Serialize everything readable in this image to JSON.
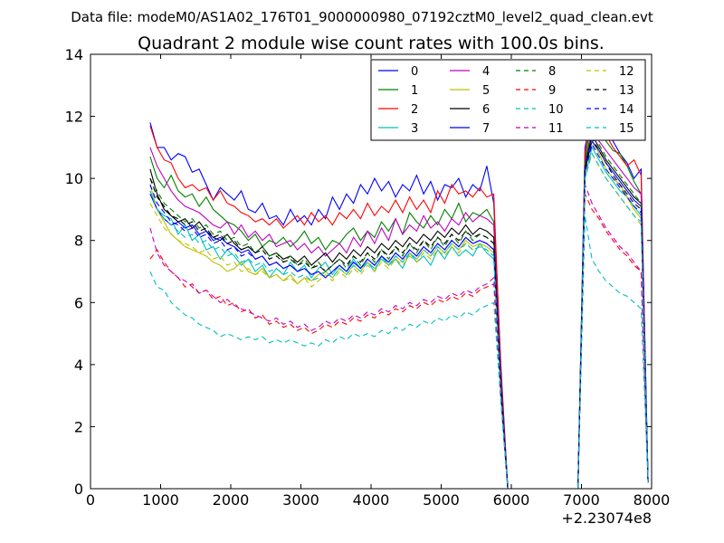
{
  "header": {
    "data_file": "Data file: modeM0/AS1A02_176T01_9000000980_07192cztM0_level2_quad_clean.evt"
  },
  "chart_data": {
    "type": "line",
    "title": "Quadrant 2 module wise count rates with 100.0s bins.",
    "xlabel": "",
    "ylabel": "",
    "x_offset_label": "+2.23074e8",
    "xlim": [
      0,
      8000
    ],
    "ylim": [
      0,
      14
    ],
    "xticks": [
      "0",
      "1000",
      "2000",
      "3000",
      "4000",
      "5000",
      "6000",
      "7000",
      "8000"
    ],
    "yticks": [
      "0",
      "2",
      "4",
      "6",
      "8",
      "10",
      "12",
      "14"
    ],
    "grid": false,
    "legend_position": "top-right",
    "x": [
      850,
      950,
      1050,
      1150,
      1250,
      1350,
      1450,
      1550,
      1650,
      1750,
      1850,
      1950,
      2050,
      2150,
      2250,
      2350,
      2450,
      2550,
      2650,
      2750,
      2850,
      2950,
      3050,
      3150,
      3250,
      3350,
      3450,
      3550,
      3650,
      3750,
      3850,
      3950,
      4050,
      4150,
      4250,
      4350,
      4450,
      4550,
      4650,
      4750,
      4850,
      4950,
      5050,
      5150,
      5250,
      5350,
      5450,
      5550,
      5650,
      5750,
      5850,
      5950,
      6050,
      6950,
      7050,
      7150,
      7250,
      7350,
      7450,
      7550,
      7650,
      7750,
      7850,
      7950
    ],
    "series": [
      {
        "name": "0",
        "color": "#0000ff",
        "dash": "solid",
        "values": [
          11.8,
          11.0,
          11.0,
          10.6,
          10.8,
          10.7,
          10.2,
          10.3,
          9.8,
          9.3,
          9.7,
          9.5,
          9.3,
          9.6,
          9.0,
          8.9,
          9.2,
          8.7,
          8.8,
          8.5,
          9.0,
          8.6,
          8.8,
          8.5,
          9.0,
          8.7,
          9.4,
          9.0,
          9.5,
          9.2,
          9.8,
          9.5,
          10.0,
          9.6,
          9.9,
          9.4,
          9.8,
          9.6,
          10.1,
          9.5,
          9.9,
          9.3,
          9.8,
          9.7,
          10.0,
          9.4,
          9.8,
          9.6,
          10.4,
          9.2,
          4.0,
          0.0,
          0.0,
          0.0,
          11.0,
          12.1,
          12.6,
          11.9,
          11.2,
          10.8,
          10.5,
          10.0,
          10.3,
          0.2
        ]
      },
      {
        "name": "1",
        "color": "#008000",
        "dash": "solid",
        "values": [
          10.7,
          10.0,
          9.7,
          10.1,
          9.6,
          9.4,
          9.5,
          9.1,
          9.4,
          9.0,
          8.8,
          8.6,
          8.5,
          8.3,
          8.0,
          8.2,
          7.8,
          8.0,
          7.9,
          8.1,
          7.8,
          8.0,
          8.3,
          7.9,
          8.1,
          7.7,
          8.0,
          7.9,
          8.2,
          8.4,
          8.0,
          8.3,
          8.1,
          8.6,
          8.3,
          8.7,
          8.2,
          8.9,
          8.6,
          8.4,
          8.8,
          8.5,
          9.0,
          8.7,
          9.2,
          8.6,
          8.9,
          8.8,
          9.0,
          8.6,
          3.5,
          0.0,
          0.0,
          0.0,
          10.6,
          12.0,
          11.6,
          11.2,
          10.9,
          10.8,
          10.4,
          9.9,
          9.5,
          0.2
        ]
      },
      {
        "name": "2",
        "color": "#ff0000",
        "dash": "solid",
        "values": [
          11.7,
          11.0,
          10.6,
          10.5,
          10.0,
          9.7,
          9.8,
          9.6,
          9.7,
          9.3,
          9.6,
          9.2,
          9.1,
          8.9,
          8.8,
          8.6,
          8.7,
          8.5,
          8.7,
          8.4,
          8.6,
          8.8,
          8.5,
          8.9,
          8.6,
          8.8,
          8.5,
          8.9,
          8.7,
          9.0,
          8.7,
          9.2,
          8.8,
          9.1,
          8.9,
          9.3,
          8.9,
          9.4,
          9.0,
          9.3,
          8.9,
          9.6,
          9.2,
          9.8,
          9.5,
          9.6,
          9.4,
          9.7,
          9.4,
          9.5,
          3.8,
          0.0,
          0.0,
          0.0,
          10.8,
          12.4,
          12.0,
          11.4,
          11.0,
          10.7,
          10.4,
          10.6,
          10.1,
          0.2
        ]
      },
      {
        "name": "3",
        "color": "#00bfbf",
        "dash": "solid",
        "values": [
          9.6,
          9.0,
          8.8,
          8.7,
          8.2,
          8.5,
          8.0,
          8.2,
          7.7,
          7.8,
          7.4,
          7.7,
          7.5,
          7.2,
          7.4,
          7.0,
          7.2,
          6.8,
          7.1,
          6.9,
          7.3,
          7.0,
          7.2,
          6.8,
          7.1,
          7.3,
          6.9,
          7.2,
          7.0,
          7.4,
          7.1,
          7.3,
          7.0,
          7.5,
          7.2,
          7.4,
          7.1,
          7.6,
          7.3,
          7.5,
          7.2,
          7.7,
          7.4,
          7.8,
          7.5,
          7.7,
          7.5,
          7.9,
          7.6,
          7.4,
          3.0,
          0.0,
          0.0,
          0.0,
          10.0,
          11.0,
          10.6,
          10.2,
          9.9,
          9.6,
          9.4,
          9.1,
          8.8,
          0.2
        ]
      },
      {
        "name": "4",
        "color": "#bf00bf",
        "dash": "solid",
        "values": [
          11.0,
          10.4,
          10.0,
          9.6,
          9.3,
          9.1,
          9.0,
          8.9,
          8.7,
          8.5,
          8.4,
          8.6,
          8.2,
          8.5,
          8.1,
          8.3,
          8.0,
          8.2,
          7.8,
          7.9,
          8.0,
          7.7,
          7.9,
          7.6,
          7.8,
          7.5,
          7.7,
          7.9,
          7.6,
          8.1,
          7.8,
          8.3,
          7.9,
          8.4,
          8.0,
          8.7,
          8.2,
          8.5,
          8.3,
          8.8,
          8.4,
          8.6,
          8.3,
          8.7,
          8.5,
          8.9,
          8.6,
          8.8,
          8.7,
          8.5,
          3.4,
          0.0,
          0.0,
          0.0,
          10.5,
          11.6,
          11.2,
          10.9,
          10.6,
          10.3,
          10.0,
          9.7,
          9.5,
          0.2
        ]
      },
      {
        "name": "5",
        "color": "#bfbf00",
        "dash": "solid",
        "values": [
          9.8,
          9.0,
          8.6,
          8.2,
          8.0,
          7.8,
          7.7,
          7.6,
          7.5,
          7.3,
          7.2,
          7.0,
          7.1,
          7.3,
          7.0,
          6.9,
          7.1,
          6.8,
          6.9,
          6.7,
          6.9,
          6.6,
          6.8,
          6.7,
          6.9,
          7.0,
          6.8,
          7.1,
          6.9,
          7.2,
          7.0,
          7.3,
          7.1,
          7.4,
          7.2,
          7.5,
          7.3,
          7.6,
          7.4,
          7.7,
          7.5,
          7.8,
          7.6,
          7.9,
          7.7,
          8.0,
          7.8,
          7.9,
          7.8,
          7.6,
          3.0,
          0.0,
          0.0,
          0.0,
          10.2,
          11.2,
          10.8,
          10.3,
          10.0,
          9.8,
          9.4,
          9.0,
          8.7,
          0.2
        ]
      },
      {
        "name": "6",
        "color": "#000000",
        "dash": "solid",
        "values": [
          10.3,
          9.5,
          9.0,
          8.8,
          8.6,
          8.7,
          8.4,
          8.6,
          8.3,
          8.1,
          8.0,
          8.2,
          7.9,
          7.7,
          7.8,
          7.6,
          7.8,
          7.5,
          7.6,
          7.4,
          7.5,
          7.3,
          7.5,
          7.2,
          7.4,
          7.6,
          7.3,
          7.6,
          7.4,
          7.7,
          7.5,
          7.8,
          7.6,
          7.9,
          7.7,
          8.0,
          7.8,
          8.1,
          7.9,
          8.2,
          8.0,
          8.3,
          8.1,
          8.4,
          8.2,
          8.5,
          8.2,
          8.4,
          8.3,
          8.1,
          3.3,
          0.0,
          0.0,
          0.0,
          10.4,
          11.4,
          11.0,
          10.6,
          10.3,
          10.0,
          9.7,
          9.4,
          9.2,
          0.2
        ]
      },
      {
        "name": "7",
        "color": "#0000ff",
        "dash": "solid",
        "values": [
          9.5,
          9.0,
          8.7,
          8.5,
          8.6,
          8.4,
          8.5,
          8.2,
          8.3,
          8.0,
          8.1,
          7.9,
          7.8,
          7.6,
          7.7,
          7.4,
          7.5,
          7.2,
          7.3,
          7.1,
          7.2,
          7.0,
          7.1,
          6.9,
          7.0,
          6.8,
          7.0,
          7.2,
          7.0,
          7.3,
          7.1,
          7.4,
          7.2,
          7.5,
          7.3,
          7.6,
          7.4,
          7.7,
          7.5,
          7.8,
          7.6,
          7.9,
          7.7,
          8.0,
          7.8,
          8.1,
          7.9,
          8.0,
          7.9,
          7.7,
          3.1,
          0.0,
          0.0,
          0.0,
          10.3,
          11.2,
          10.9,
          10.5,
          10.2,
          9.9,
          9.6,
          9.3,
          9.1,
          0.2
        ]
      },
      {
        "name": "8",
        "color": "#008000",
        "dash": "dashed",
        "values": [
          10.0,
          9.6,
          9.2,
          9.0,
          8.8,
          8.6,
          8.7,
          8.4,
          8.5,
          8.2,
          8.3,
          8.0,
          8.1,
          7.8,
          7.9,
          7.6,
          7.8,
          7.5,
          7.6,
          7.3,
          7.5,
          7.2,
          7.4,
          7.1,
          7.3,
          7.0,
          7.2,
          7.4,
          7.1,
          7.5,
          7.2,
          7.6,
          7.3,
          7.7,
          7.4,
          7.8,
          7.5,
          7.9,
          7.6,
          8.0,
          7.7,
          8.1,
          7.8,
          8.2,
          7.9,
          8.3,
          8.0,
          8.2,
          8.1,
          7.9,
          3.2,
          0.0,
          0.0,
          0.0,
          10.5,
          11.6,
          11.1,
          10.7,
          10.4,
          10.1,
          9.8,
          9.5,
          9.2,
          0.2
        ]
      },
      {
        "name": "9",
        "color": "#ff0000",
        "dash": "dashed",
        "values": [
          7.4,
          7.7,
          7.3,
          7.0,
          6.8,
          6.5,
          6.6,
          6.3,
          6.4,
          6.1,
          6.2,
          5.9,
          6.0,
          5.7,
          5.8,
          5.5,
          5.6,
          5.3,
          5.4,
          5.2,
          5.3,
          5.1,
          5.2,
          5.0,
          5.1,
          5.3,
          5.2,
          5.4,
          5.3,
          5.5,
          5.4,
          5.6,
          5.5,
          5.7,
          5.6,
          5.8,
          5.7,
          5.9,
          5.8,
          6.0,
          5.9,
          6.1,
          6.0,
          6.2,
          6.1,
          6.3,
          6.2,
          6.4,
          6.5,
          6.6,
          3.0,
          0.0,
          0.0,
          0.0,
          9.5,
          9.0,
          8.7,
          8.3,
          8.0,
          7.7,
          7.5,
          7.2,
          7.0,
          0.2
        ]
      },
      {
        "name": "10",
        "color": "#00bfbf",
        "dash": "dashed",
        "values": [
          7.0,
          6.5,
          6.4,
          6.0,
          5.8,
          5.6,
          5.5,
          5.3,
          5.2,
          5.1,
          4.9,
          5.0,
          4.9,
          4.8,
          4.9,
          4.8,
          4.9,
          4.7,
          4.8,
          4.7,
          4.8,
          4.7,
          4.6,
          4.7,
          4.6,
          4.8,
          4.7,
          4.9,
          4.8,
          5.0,
          4.9,
          5.0,
          4.9,
          5.1,
          5.0,
          5.2,
          5.1,
          5.3,
          5.2,
          5.4,
          5.3,
          5.5,
          5.4,
          5.6,
          5.5,
          5.7,
          5.6,
          5.8,
          5.9,
          6.0,
          2.8,
          0.0,
          0.0,
          0.0,
          8.8,
          7.4,
          7.0,
          6.7,
          6.5,
          6.3,
          6.2,
          6.0,
          5.8,
          0.2
        ]
      },
      {
        "name": "11",
        "color": "#bf00bf",
        "dash": "dashed",
        "values": [
          8.4,
          7.6,
          7.2,
          7.0,
          6.8,
          6.7,
          6.5,
          6.3,
          6.4,
          6.2,
          6.0,
          6.1,
          5.9,
          5.8,
          5.7,
          5.6,
          5.5,
          5.4,
          5.5,
          5.3,
          5.4,
          5.2,
          5.3,
          5.1,
          5.2,
          5.4,
          5.3,
          5.5,
          5.4,
          5.6,
          5.5,
          5.7,
          5.6,
          5.8,
          5.7,
          5.9,
          5.8,
          6.0,
          5.9,
          6.1,
          6.0,
          6.2,
          6.1,
          6.3,
          6.2,
          6.4,
          6.3,
          6.5,
          6.6,
          6.8,
          3.0,
          0.0,
          0.0,
          0.0,
          9.8,
          9.2,
          8.8,
          8.4,
          8.1,
          7.8,
          7.6,
          7.3,
          7.0,
          0.2
        ]
      },
      {
        "name": "12",
        "color": "#bfbf00",
        "dash": "dashed",
        "values": [
          9.2,
          8.8,
          8.4,
          8.2,
          8.0,
          7.9,
          7.8,
          7.6,
          7.7,
          7.4,
          7.5,
          7.2,
          7.3,
          7.0,
          7.1,
          6.9,
          7.0,
          6.8,
          6.9,
          6.7,
          6.8,
          6.6,
          6.8,
          6.5,
          6.7,
          6.9,
          6.7,
          7.0,
          6.8,
          7.1,
          6.9,
          7.2,
          7.0,
          7.3,
          7.1,
          7.4,
          7.2,
          7.5,
          7.3,
          7.6,
          7.4,
          7.7,
          7.5,
          7.8,
          7.6,
          7.9,
          7.7,
          7.8,
          7.7,
          7.5,
          3.0,
          0.0,
          0.0,
          0.0,
          10.2,
          10.8,
          10.4,
          10.0,
          9.7,
          9.4,
          9.1,
          8.8,
          8.5,
          0.2
        ]
      },
      {
        "name": "13",
        "color": "#000000",
        "dash": "dashed",
        "values": [
          10.0,
          9.4,
          9.1,
          8.8,
          8.7,
          8.5,
          8.6,
          8.3,
          8.4,
          8.1,
          8.2,
          7.9,
          8.0,
          7.7,
          7.8,
          7.6,
          7.7,
          7.4,
          7.5,
          7.3,
          7.4,
          7.2,
          7.3,
          7.1,
          7.2,
          7.0,
          7.2,
          7.4,
          7.2,
          7.5,
          7.3,
          7.6,
          7.4,
          7.7,
          7.5,
          7.8,
          7.6,
          7.9,
          7.7,
          8.0,
          7.8,
          8.1,
          7.9,
          8.2,
          8.0,
          8.3,
          8.1,
          8.2,
          8.1,
          7.9,
          3.2,
          0.0,
          0.0,
          0.0,
          10.3,
          11.3,
          10.9,
          10.5,
          10.1,
          9.8,
          9.5,
          9.2,
          9.0,
          0.2
        ]
      },
      {
        "name": "14",
        "color": "#0000ff",
        "dash": "dashed",
        "values": [
          9.8,
          9.2,
          8.9,
          8.6,
          8.5,
          8.3,
          8.4,
          8.1,
          8.2,
          7.9,
          8.0,
          7.7,
          7.8,
          7.5,
          7.6,
          7.4,
          7.5,
          7.2,
          7.3,
          7.1,
          7.2,
          7.0,
          7.1,
          6.9,
          7.0,
          6.8,
          7.0,
          7.2,
          7.0,
          7.3,
          7.1,
          7.4,
          7.2,
          7.5,
          7.3,
          7.6,
          7.4,
          7.7,
          7.5,
          7.8,
          7.6,
          7.9,
          7.7,
          8.0,
          7.8,
          8.1,
          7.9,
          8.0,
          7.9,
          7.7,
          3.1,
          0.0,
          0.0,
          0.0,
          10.2,
          11.1,
          10.7,
          10.3,
          10.0,
          9.7,
          9.4,
          9.1,
          8.9,
          0.2
        ]
      },
      {
        "name": "15",
        "color": "#00bfbf",
        "dash": "dashed",
        "values": [
          9.6,
          9.0,
          8.7,
          8.5,
          8.3,
          8.1,
          8.2,
          7.9,
          8.0,
          7.7,
          7.8,
          7.5,
          7.6,
          7.3,
          7.4,
          7.2,
          7.3,
          7.0,
          7.1,
          6.9,
          7.0,
          6.8,
          6.9,
          6.7,
          6.8,
          7.0,
          6.8,
          7.1,
          6.9,
          7.2,
          7.0,
          7.3,
          7.1,
          7.4,
          7.2,
          7.5,
          7.3,
          7.6,
          7.4,
          7.7,
          7.5,
          7.8,
          7.6,
          7.9,
          7.7,
          7.9,
          7.7,
          7.8,
          7.7,
          7.5,
          3.0,
          0.0,
          0.0,
          0.0,
          10.0,
          10.8,
          10.4,
          10.0,
          9.7,
          9.4,
          9.1,
          8.8,
          8.6,
          0.2
        ]
      }
    ]
  }
}
